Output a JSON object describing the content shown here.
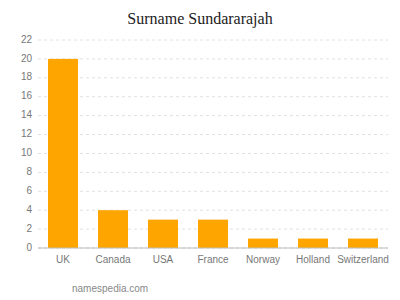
{
  "chart_data": {
    "type": "bar",
    "title": "Surname Sundararajah",
    "categories": [
      "UK",
      "Canada",
      "USA",
      "France",
      "Norway",
      "Holland",
      "Switzerland"
    ],
    "values": [
      20,
      4,
      3,
      3,
      1,
      1,
      1
    ],
    "color": "#FFA500",
    "ylim": [
      0,
      22
    ],
    "yticks": [
      0,
      2,
      4,
      6,
      8,
      10,
      12,
      14,
      16,
      18,
      20,
      22
    ],
    "grid": true,
    "annotations": [
      "namespedia.com"
    ]
  }
}
